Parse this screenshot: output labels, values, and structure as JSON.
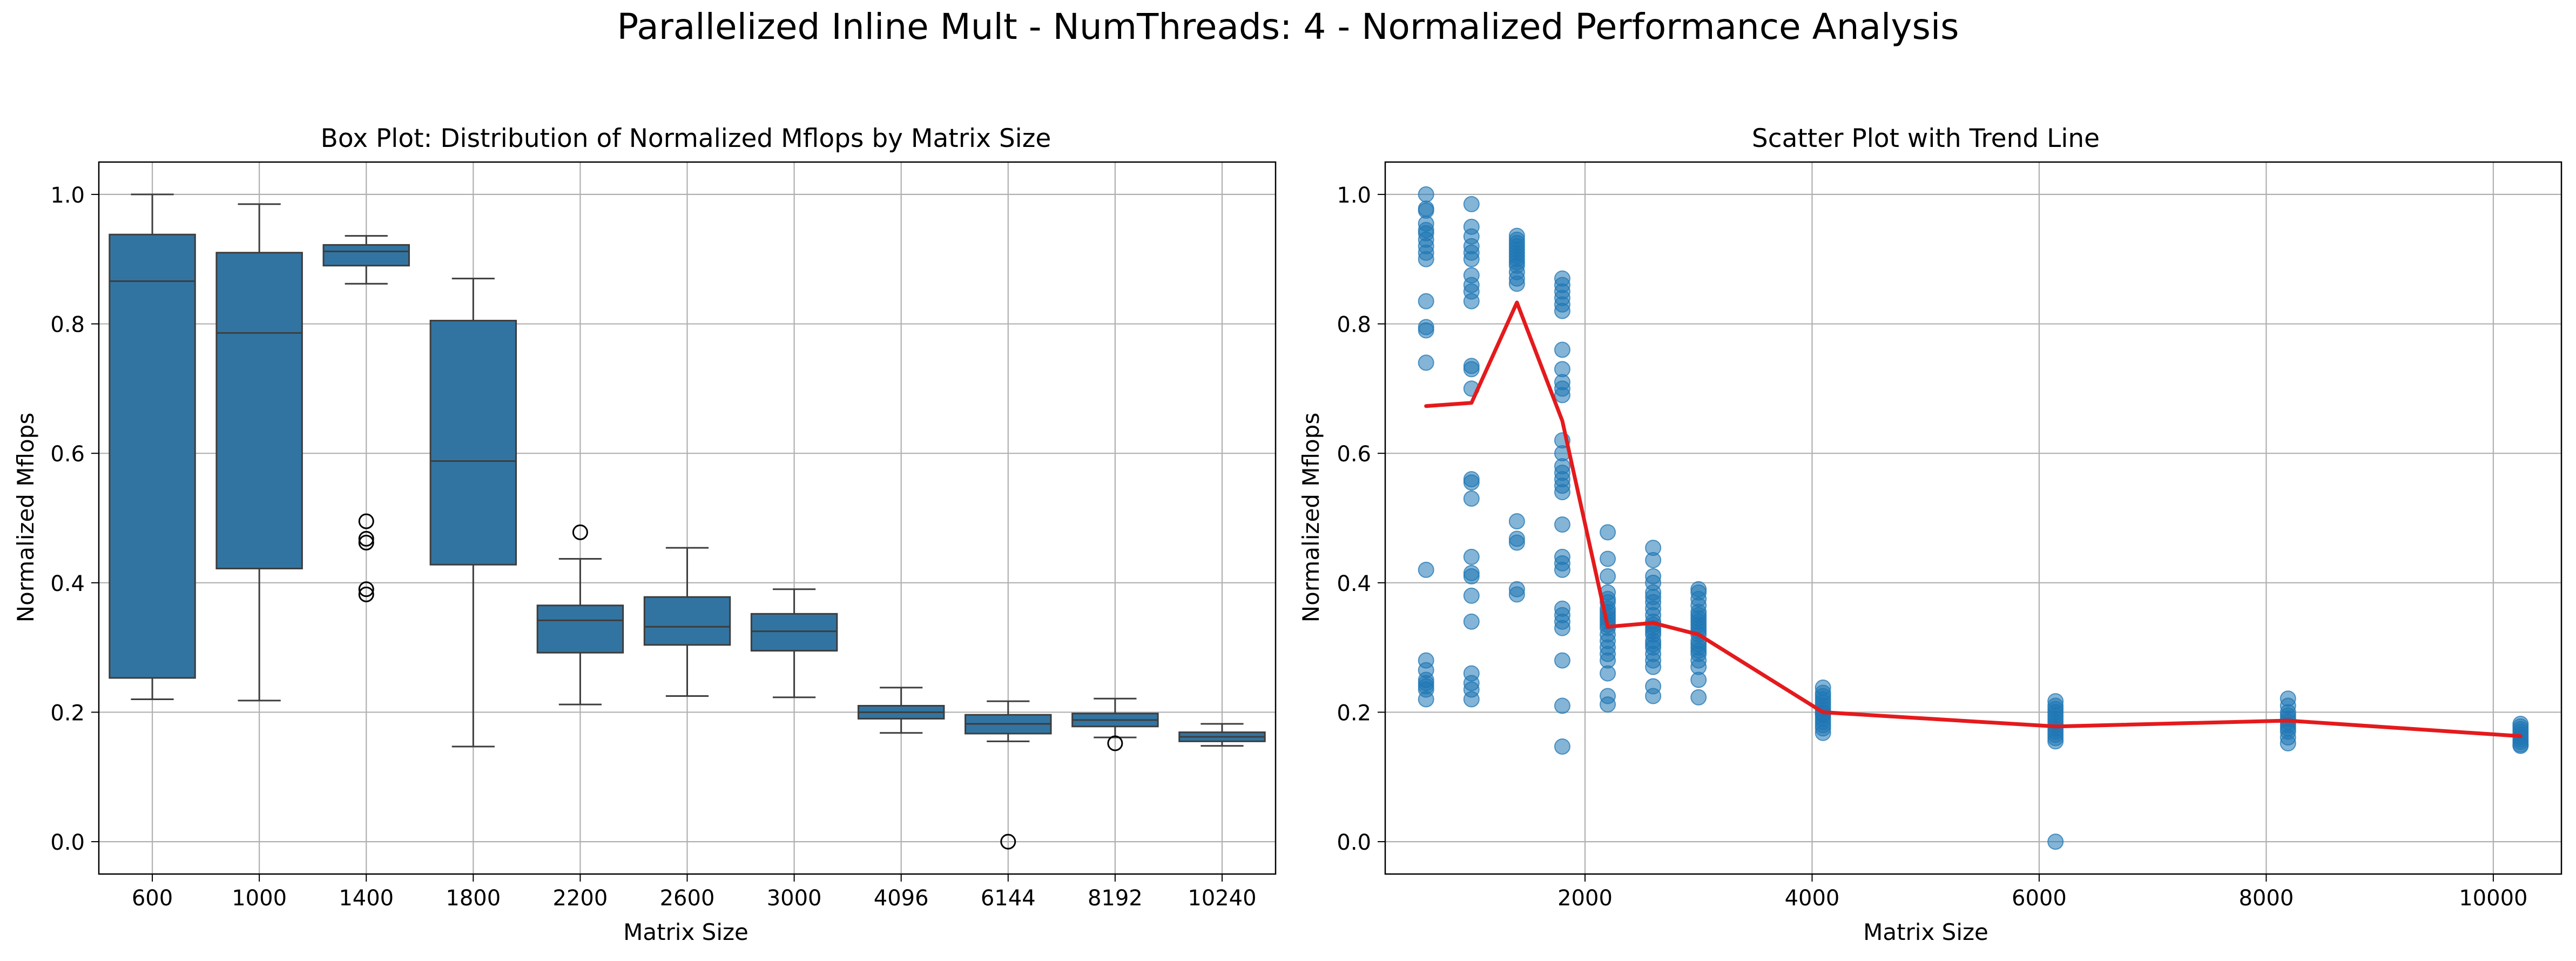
{
  "figure": {
    "suptitle": "Parallelized Inline Mult - NumThreads: 4 - Normalized Performance Analysis"
  },
  "colors": {
    "box_fill": "#3274a1",
    "box_edge": "#3d3d3d",
    "scatter": "#1f77b4",
    "trend": "#e41a1c",
    "grid": "#b0b0b0"
  },
  "chart_data": [
    {
      "type": "box",
      "title": "Box Plot: Distribution of Normalized Mflops by Matrix Size",
      "xlabel": "Matrix Size",
      "ylabel": "Normalized Mflops",
      "ylim": [
        -0.05,
        1.05
      ],
      "yticks": [
        "0.0",
        "0.2",
        "0.4",
        "0.6",
        "0.8",
        "1.0"
      ],
      "grid": true,
      "categories": [
        "600",
        "1000",
        "1400",
        "1800",
        "2200",
        "2600",
        "3000",
        "4096",
        "6144",
        "8192",
        "10240"
      ],
      "boxes": [
        {
          "whisker_low": 0.22,
          "q1": 0.253,
          "median": 0.866,
          "q3": 0.938,
          "whisker_high": 1.0,
          "outliers": []
        },
        {
          "whisker_low": 0.218,
          "q1": 0.422,
          "median": 0.786,
          "q3": 0.91,
          "whisker_high": 0.985,
          "outliers": []
        },
        {
          "whisker_low": 0.862,
          "q1": 0.89,
          "median": 0.912,
          "q3": 0.922,
          "whisker_high": 0.936,
          "outliers": [
            0.495,
            0.468,
            0.462,
            0.39,
            0.382
          ]
        },
        {
          "whisker_low": 0.147,
          "q1": 0.428,
          "median": 0.588,
          "q3": 0.805,
          "whisker_high": 0.87,
          "outliers": []
        },
        {
          "whisker_low": 0.212,
          "q1": 0.292,
          "median": 0.342,
          "q3": 0.365,
          "whisker_high": 0.437,
          "outliers": [
            0.478
          ]
        },
        {
          "whisker_low": 0.225,
          "q1": 0.304,
          "median": 0.332,
          "q3": 0.378,
          "whisker_high": 0.454,
          "outliers": []
        },
        {
          "whisker_low": 0.223,
          "q1": 0.295,
          "median": 0.325,
          "q3": 0.352,
          "whisker_high": 0.39,
          "outliers": []
        },
        {
          "whisker_low": 0.168,
          "q1": 0.19,
          "median": 0.2,
          "q3": 0.21,
          "whisker_high": 0.238,
          "outliers": []
        },
        {
          "whisker_low": 0.155,
          "q1": 0.167,
          "median": 0.182,
          "q3": 0.196,
          "whisker_high": 0.217,
          "outliers": [
            0.0
          ]
        },
        {
          "whisker_low": 0.161,
          "q1": 0.178,
          "median": 0.188,
          "q3": 0.198,
          "whisker_high": 0.221,
          "outliers": [
            0.152
          ]
        },
        {
          "whisker_low": 0.148,
          "q1": 0.155,
          "median": 0.162,
          "q3": 0.169,
          "whisker_high": 0.182,
          "outliers": []
        }
      ]
    },
    {
      "type": "scatter",
      "title": "Scatter Plot with Trend Line",
      "xlabel": "Matrix Size",
      "ylabel": "Normalized Mflops",
      "xlim": [
        240,
        10600
      ],
      "ylim": [
        -0.05,
        1.05
      ],
      "xticks": [
        2000,
        4000,
        6000,
        8000,
        10000
      ],
      "xtick_labels": [
        "2000",
        "4000",
        "6000",
        "8000",
        "10000"
      ],
      "yticks": [
        "0.0",
        "0.2",
        "0.4",
        "0.6",
        "0.8",
        "1.0"
      ],
      "grid": true,
      "points": [
        {
          "x": 600,
          "ys": [
            1.0,
            0.978,
            0.975,
            0.955,
            0.945,
            0.94,
            0.93,
            0.92,
            0.91,
            0.9,
            0.835,
            0.795,
            0.79,
            0.74,
            0.42,
            0.28,
            0.265,
            0.25,
            0.245,
            0.24,
            0.235,
            0.22
          ]
        },
        {
          "x": 1000,
          "ys": [
            0.985,
            0.95,
            0.935,
            0.92,
            0.91,
            0.9,
            0.875,
            0.86,
            0.85,
            0.835,
            0.735,
            0.73,
            0.7,
            0.56,
            0.555,
            0.53,
            0.44,
            0.415,
            0.41,
            0.38,
            0.34,
            0.26,
            0.245,
            0.235,
            0.22
          ]
        },
        {
          "x": 1400,
          "ys": [
            0.936,
            0.93,
            0.925,
            0.92,
            0.915,
            0.91,
            0.905,
            0.9,
            0.895,
            0.89,
            0.88,
            0.87,
            0.862,
            0.495,
            0.468,
            0.462,
            0.39,
            0.382
          ]
        },
        {
          "x": 1800,
          "ys": [
            0.87,
            0.86,
            0.85,
            0.84,
            0.83,
            0.82,
            0.76,
            0.73,
            0.71,
            0.7,
            0.69,
            0.62,
            0.6,
            0.58,
            0.57,
            0.56,
            0.55,
            0.54,
            0.49,
            0.44,
            0.43,
            0.42,
            0.36,
            0.35,
            0.34,
            0.33,
            0.28,
            0.21,
            0.147
          ]
        },
        {
          "x": 2200,
          "ys": [
            0.478,
            0.437,
            0.41,
            0.385,
            0.375,
            0.37,
            0.36,
            0.355,
            0.35,
            0.345,
            0.34,
            0.335,
            0.33,
            0.32,
            0.31,
            0.3,
            0.29,
            0.28,
            0.26,
            0.225,
            0.212
          ]
        },
        {
          "x": 2600,
          "ys": [
            0.454,
            0.435,
            0.41,
            0.4,
            0.385,
            0.378,
            0.37,
            0.36,
            0.35,
            0.34,
            0.335,
            0.33,
            0.325,
            0.32,
            0.31,
            0.305,
            0.3,
            0.29,
            0.28,
            0.27,
            0.24,
            0.225
          ]
        },
        {
          "x": 3000,
          "ys": [
            0.39,
            0.385,
            0.375,
            0.365,
            0.355,
            0.35,
            0.345,
            0.34,
            0.335,
            0.33,
            0.325,
            0.32,
            0.31,
            0.305,
            0.3,
            0.295,
            0.29,
            0.28,
            0.27,
            0.25,
            0.223
          ]
        },
        {
          "x": 4096,
          "ys": [
            0.238,
            0.23,
            0.225,
            0.22,
            0.215,
            0.21,
            0.205,
            0.2,
            0.198,
            0.195,
            0.19,
            0.185,
            0.18,
            0.175,
            0.168
          ]
        },
        {
          "x": 6144,
          "ys": [
            0.217,
            0.21,
            0.205,
            0.2,
            0.195,
            0.19,
            0.185,
            0.18,
            0.175,
            0.17,
            0.165,
            0.16,
            0.155,
            0.0
          ]
        },
        {
          "x": 8192,
          "ys": [
            0.221,
            0.21,
            0.2,
            0.195,
            0.19,
            0.185,
            0.18,
            0.175,
            0.17,
            0.161,
            0.152
          ]
        },
        {
          "x": 10240,
          "ys": [
            0.182,
            0.178,
            0.174,
            0.17,
            0.166,
            0.162,
            0.158,
            0.154,
            0.15,
            0.148
          ]
        }
      ],
      "trend": {
        "x": [
          600,
          1000,
          1400,
          1800,
          2200,
          2600,
          3000,
          4096,
          6144,
          8192,
          10240
        ],
        "y": [
          0.673,
          0.678,
          0.833,
          0.65,
          0.332,
          0.338,
          0.32,
          0.2,
          0.178,
          0.187,
          0.163
        ]
      }
    }
  ]
}
